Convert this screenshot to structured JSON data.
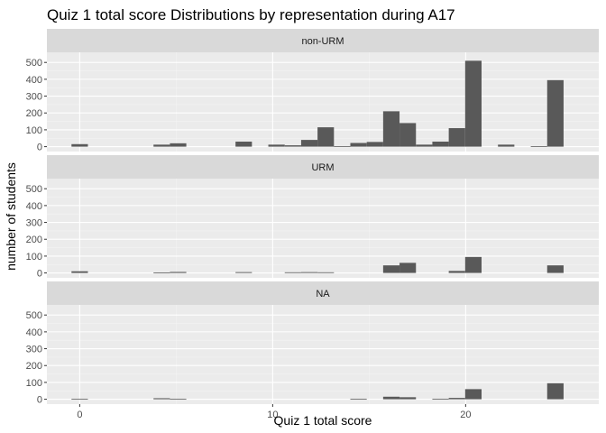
{
  "chart_data": {
    "type": "bar",
    "title": "Quiz 1 total score Distributions by representation during A17",
    "xlabel": "Quiz 1 total score",
    "ylabel": "number of students",
    "xlim": [
      -1.7,
      26.9
    ],
    "ylim": [
      -29,
      560
    ],
    "x_ticks": [
      0,
      10,
      20
    ],
    "y_ticks": [
      0,
      100,
      200,
      300,
      400,
      500
    ],
    "bin_width": 0.85,
    "grid": true,
    "colors": {
      "panel_bg": "#ebebeb",
      "strip_bg": "#d9d9d9",
      "bar": "#595959",
      "grid_major": "#ffffff",
      "grid_minor": "#f4f4f4"
    },
    "panels": [
      {
        "label": "non-URM",
        "bars": [
          {
            "x": 0.0,
            "y": 15
          },
          {
            "x": 4.25,
            "y": 12
          },
          {
            "x": 5.1,
            "y": 20
          },
          {
            "x": 8.5,
            "y": 30
          },
          {
            "x": 10.2,
            "y": 12
          },
          {
            "x": 11.05,
            "y": 8
          },
          {
            "x": 11.9,
            "y": 40
          },
          {
            "x": 12.75,
            "y": 115
          },
          {
            "x": 13.6,
            "y": 3
          },
          {
            "x": 14.45,
            "y": 22
          },
          {
            "x": 15.3,
            "y": 28
          },
          {
            "x": 16.15,
            "y": 210
          },
          {
            "x": 17.0,
            "y": 140
          },
          {
            "x": 17.85,
            "y": 12
          },
          {
            "x": 18.7,
            "y": 30
          },
          {
            "x": 19.55,
            "y": 110
          },
          {
            "x": 20.4,
            "y": 510
          },
          {
            "x": 22.1,
            "y": 12
          },
          {
            "x": 23.8,
            "y": 3
          },
          {
            "x": 24.65,
            "y": 395
          }
        ]
      },
      {
        "label": "URM",
        "bars": [
          {
            "x": 0.0,
            "y": 10
          },
          {
            "x": 4.25,
            "y": 3
          },
          {
            "x": 5.1,
            "y": 6
          },
          {
            "x": 8.5,
            "y": 5
          },
          {
            "x": 11.05,
            "y": 4
          },
          {
            "x": 11.9,
            "y": 5
          },
          {
            "x": 12.75,
            "y": 4
          },
          {
            "x": 16.15,
            "y": 45
          },
          {
            "x": 17.0,
            "y": 60
          },
          {
            "x": 19.55,
            "y": 12
          },
          {
            "x": 20.4,
            "y": 95
          },
          {
            "x": 24.65,
            "y": 45
          }
        ]
      },
      {
        "label": "NA",
        "bars": [
          {
            "x": 0.0,
            "y": 2
          },
          {
            "x": 4.25,
            "y": 6
          },
          {
            "x": 5.1,
            "y": 2
          },
          {
            "x": 14.45,
            "y": 2
          },
          {
            "x": 16.15,
            "y": 15
          },
          {
            "x": 17.0,
            "y": 12
          },
          {
            "x": 18.7,
            "y": 3
          },
          {
            "x": 19.55,
            "y": 8
          },
          {
            "x": 20.4,
            "y": 60
          },
          {
            "x": 24.65,
            "y": 95
          }
        ]
      }
    ]
  }
}
